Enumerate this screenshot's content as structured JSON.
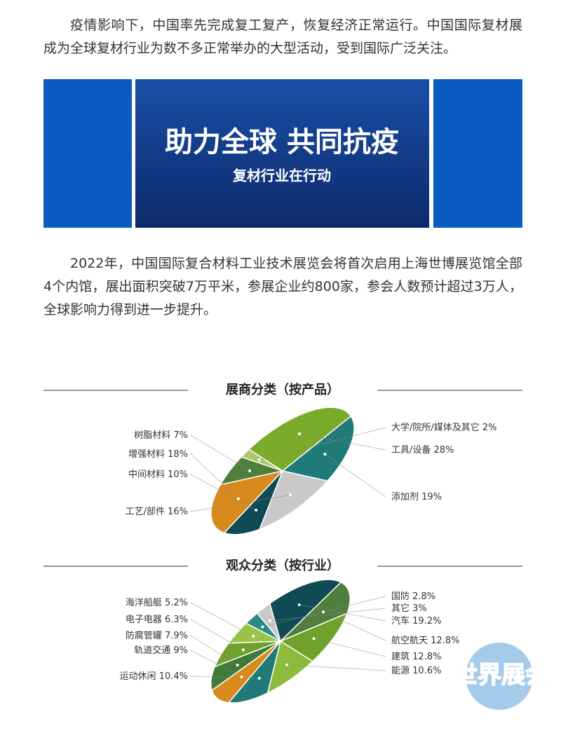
{
  "paragraphs": [
    "疫情影响下，中国率先完成复工复产，恢复经济正常运行。中国国际复材展成为全球复材行业为数不多正常举办的大型活动，受到国际广泛关注。",
    "2022年，中国国际复合材料工业技术展览会将首次启用上海世博展览馆全部4个内馆，展出面积突破7万平米，参展企业约800家，参会人数预计超过3万人，全球影响力得到进一步提升。"
  ],
  "banner": {
    "title": "助力全球 共同抗疫",
    "subtitle": "复材行业在行动"
  },
  "watermark": "世界展会",
  "chart_data": [
    {
      "type": "pie",
      "title": "展商分类（按产品）",
      "categories": [
        "大学/院所/媒体及其它",
        "工具/设备",
        "添加剂",
        "工艺/部件",
        "中间材料",
        "增强材料",
        "树脂材料"
      ],
      "values": [
        2,
        28,
        19,
        16,
        10,
        18,
        7
      ],
      "value_labels": [
        "2%",
        "28%",
        "19%",
        "16%",
        "10%",
        "18%",
        "7%"
      ],
      "colors": [
        "#a9c96a",
        "#7aab2a",
        "#1f7a78",
        "#c9c9c9",
        "#0f4a55",
        "#d98a1c",
        "#4f7f3a"
      ]
    },
    {
      "type": "pie",
      "title": "观众分类（按行业）",
      "categories": [
        "国防",
        "其它",
        "汽车",
        "航空航天",
        "建筑",
        "能源",
        "运动休闲",
        "轨道交通",
        "防腐管罐",
        "电子电器",
        "海洋船艇"
      ],
      "values": [
        2.8,
        3,
        19.2,
        12.8,
        12.8,
        10.6,
        10.4,
        9,
        7.9,
        6.3,
        5.2
      ],
      "value_labels": [
        "2.8%",
        "3%",
        "19.2%",
        "12.8%",
        "12.8%",
        "10.6%",
        "10.4%",
        "9%",
        "7.9%",
        "6.3%",
        "5.2%"
      ],
      "colors": [
        "#2a8a86",
        "#c9c9c9",
        "#0f4a55",
        "#4f7f3a",
        "#6fa12c",
        "#8dbb3c",
        "#1f7a78",
        "#d98a1c",
        "#3f7a38",
        "#6fa12c",
        "#9cc24a"
      ]
    }
  ]
}
